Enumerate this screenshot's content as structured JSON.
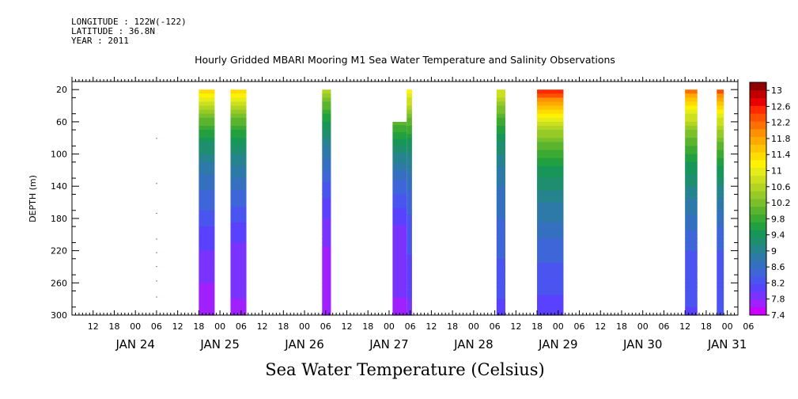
{
  "header": {
    "longitude": "LONGITUDE : 122W(-122)",
    "latitude": "LATITUDE : 36.8N",
    "year": "YEAR : 2011"
  },
  "chart_data": {
    "type": "heatmap",
    "title": "Hourly Gridded MBARI Mooring M1 Sea Water Temperature and Salinity Observations",
    "xlabel": "Sea Water Temperature (Celsius)",
    "ylabel": "DEPTH (m)",
    "xlim_hours_from_jan24_00": [
      -18,
      171
    ],
    "ylim": [
      10,
      300
    ],
    "y_inverted": true,
    "y_ticks": [
      20,
      60,
      100,
      140,
      180,
      220,
      260,
      300
    ],
    "x_hour_ticks": [
      "12",
      "18",
      "00",
      "06",
      "12",
      "18",
      "00",
      "06",
      "12",
      "18",
      "00",
      "06",
      "12",
      "18",
      "00",
      "06",
      "12",
      "18",
      "00",
      "06",
      "12",
      "18",
      "00",
      "06",
      "12",
      "18",
      "00",
      "06",
      "12",
      "18",
      "00",
      "06"
    ],
    "x_day_labels": [
      "JAN 24",
      "JAN 25",
      "JAN 26",
      "JAN 27",
      "JAN 28",
      "JAN 29",
      "JAN 30",
      "JAN 31"
    ],
    "colorbar": {
      "levels": [
        7.4,
        7.6,
        7.8,
        8.0,
        8.2,
        8.4,
        8.6,
        8.8,
        9.0,
        9.2,
        9.4,
        9.6,
        9.8,
        10.0,
        10.2,
        10.4,
        10.6,
        10.8,
        11.0,
        11.2,
        11.4,
        11.6,
        11.8,
        12.0,
        12.2,
        12.4,
        12.6,
        12.8,
        13.0,
        13.2
      ],
      "labels": [
        "7.4",
        "7.8",
        "8.2",
        "8.6",
        "9",
        "9.4",
        "9.8",
        "10.2",
        "10.6",
        "11",
        "11.4",
        "11.8",
        "12.2",
        "12.6",
        "13"
      ],
      "colors": [
        "#cc00ff",
        "#a020ff",
        "#7a33ff",
        "#5a40ff",
        "#4a55f0",
        "#3e66d8",
        "#3570c0",
        "#2d7aa8",
        "#25848e",
        "#1e8e6e",
        "#18965a",
        "#22a040",
        "#3caa32",
        "#5ab42e",
        "#7ac02a",
        "#96ca26",
        "#b2d422",
        "#cce01e",
        "#e4ec1a",
        "#fff200",
        "#ffdc00",
        "#ffc400",
        "#ffaa00",
        "#ff9000",
        "#ff7000",
        "#ff5000",
        "#ff2a00",
        "#e80000",
        "#c00000",
        "#900000"
      ]
    },
    "segments": [
      {
        "start": 18.0,
        "end": 22.5,
        "top_depth": 20,
        "surface": 11.6,
        "bottom": 7.6
      },
      {
        "start": 27.0,
        "end": 31.5,
        "top_depth": 20,
        "surface": 11.6,
        "bottom": 7.6
      },
      {
        "start": 53.0,
        "end": 55.5,
        "top_depth": 20,
        "surface": 10.8,
        "bottom": 7.5
      },
      {
        "start": 73.0,
        "end": 77.0,
        "top_depth": 60,
        "surface": 10.2,
        "bottom": 7.6
      },
      {
        "start": 77.0,
        "end": 78.5,
        "top_depth": 20,
        "surface": 11.4,
        "bottom": 7.8
      },
      {
        "start": 102.5,
        "end": 105.0,
        "top_depth": 20,
        "surface": 11.0,
        "bottom": 8.1
      },
      {
        "start": 114.0,
        "end": 121.5,
        "top_depth": 20,
        "surface": 12.8,
        "bottom": 8.0
      },
      {
        "start": 156.0,
        "end": 159.5,
        "top_depth": 20,
        "surface": 12.4,
        "bottom": 8.0
      },
      {
        "start": 165.0,
        "end": 167.0,
        "top_depth": 20,
        "surface": 12.6,
        "bottom": 8.0
      }
    ],
    "sparse_points": [
      {
        "x": 6.0,
        "depth": 80
      },
      {
        "x": 6.0,
        "depth": 136
      },
      {
        "x": 6.0,
        "depth": 173
      },
      {
        "x": 6.0,
        "depth": 205
      },
      {
        "x": 6.0,
        "depth": 222
      },
      {
        "x": 6.0,
        "depth": 239
      },
      {
        "x": 6.0,
        "depth": 257
      },
      {
        "x": 6.0,
        "depth": 277
      }
    ]
  }
}
